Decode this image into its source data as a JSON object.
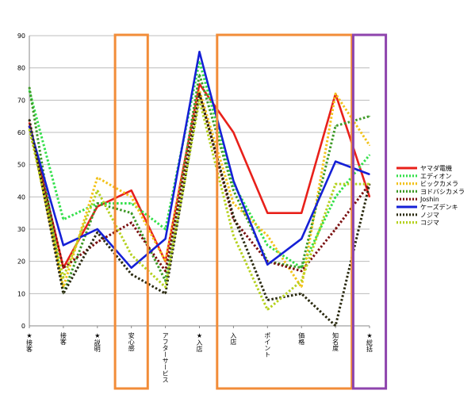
{
  "chart_data": {
    "type": "line",
    "ylim": [
      0,
      90
    ],
    "y_ticks": [
      0,
      10,
      20,
      30,
      40,
      50,
      60,
      70,
      80,
      90
    ],
    "grid": "horizontal",
    "legend_position": "right",
    "categories": [
      "★接客",
      "接客",
      "★説明",
      "安心感",
      "アフターサービス",
      "★入店",
      "入店",
      "ポイント",
      "価格",
      "知名度",
      "★総括"
    ],
    "series": [
      {
        "name": "ヤマダ電機",
        "color": "#e8201a",
        "style": "solid",
        "values": [
          63,
          18,
          37,
          42,
          20,
          75,
          60,
          35,
          35,
          72,
          40
        ]
      },
      {
        "name": "エディオン",
        "color": "#33e04a",
        "style": "dotted",
        "values": [
          73,
          33,
          38,
          38,
          30,
          82,
          44,
          25,
          18,
          40,
          53
        ]
      },
      {
        "name": "ビックカメラ",
        "color": "#f2c21a",
        "style": "dotted",
        "values": [
          62,
          12,
          46,
          40,
          20,
          73,
          38,
          28,
          12,
          72,
          56
        ]
      },
      {
        "name": "ヨドバシカメラ",
        "color": "#3f9a28",
        "style": "dotted",
        "values": [
          74,
          10,
          38,
          35,
          14,
          78,
          42,
          20,
          18,
          62,
          65
        ]
      },
      {
        "name": "Joshin",
        "color": "#7a1010",
        "style": "dotted",
        "values": [
          62,
          18,
          26,
          32,
          17,
          72,
          33,
          20,
          17,
          30,
          44
        ]
      },
      {
        "name": "ケーズデンキ",
        "color": "#1520d6",
        "style": "solid",
        "values": [
          62,
          25,
          30,
          18,
          27,
          85,
          45,
          19,
          27,
          51,
          47
        ]
      },
      {
        "name": "ノジマ",
        "color": "#2a2a10",
        "style": "dotted",
        "values": [
          64,
          10,
          29,
          16,
          10,
          72,
          34,
          8,
          10,
          0,
          44
        ]
      },
      {
        "name": "コジマ",
        "color": "#b5d11e",
        "style": "dotted",
        "values": [
          61,
          15,
          42,
          22,
          12,
          70,
          28,
          5,
          14,
          44,
          44
        ]
      }
    ]
  },
  "highlights": [
    {
      "color": "#f28c38",
      "from_index": 3,
      "to_index": 3
    },
    {
      "color": "#f28c38",
      "from_index": 6,
      "to_index": 9
    },
    {
      "color": "#8e44ad",
      "from_index": 10,
      "to_index": 10
    }
  ]
}
